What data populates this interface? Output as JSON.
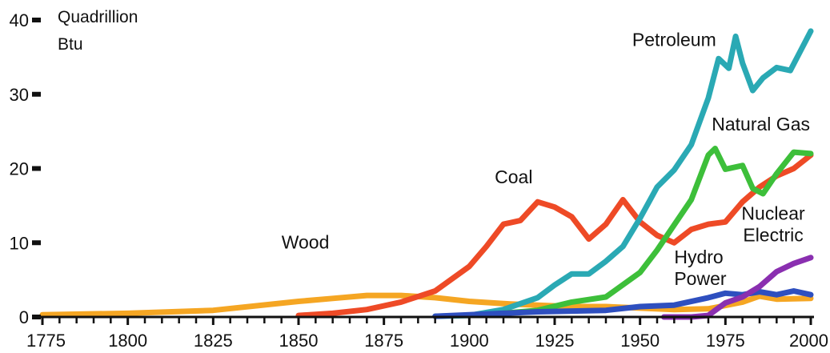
{
  "chart_data": {
    "type": "line",
    "title": "",
    "xlabel": "",
    "ylabel": "",
    "unit_label": [
      "Quadrillion",
      "Btu"
    ],
    "xlim": [
      1775,
      2000
    ],
    "ylim": [
      0,
      40
    ],
    "x_ticks": [
      1775,
      1800,
      1825,
      1850,
      1875,
      1900,
      1925,
      1950,
      1975,
      2000
    ],
    "y_ticks": [
      0,
      10,
      20,
      30,
      40
    ],
    "grid": false,
    "legend": "none",
    "series": [
      {
        "name": "Wood",
        "color": "#f5a623",
        "label_pos": {
          "x": 1852,
          "y": 9.2
        },
        "label_anchor": "middle",
        "points": [
          [
            1775,
            0.3
          ],
          [
            1800,
            0.5
          ],
          [
            1825,
            0.9
          ],
          [
            1850,
            2.1
          ],
          [
            1860,
            2.5
          ],
          [
            1870,
            2.9
          ],
          [
            1880,
            2.9
          ],
          [
            1890,
            2.6
          ],
          [
            1900,
            2.1
          ],
          [
            1910,
            1.8
          ],
          [
            1920,
            1.6
          ],
          [
            1930,
            1.4
          ],
          [
            1940,
            1.4
          ],
          [
            1950,
            1.2
          ],
          [
            1960,
            1.0
          ],
          [
            1970,
            1.1
          ],
          [
            1980,
            2.0
          ],
          [
            1985,
            2.8
          ],
          [
            1990,
            2.4
          ],
          [
            2000,
            2.5
          ]
        ]
      },
      {
        "name": "Coal",
        "color": "#ee4a26",
        "label_pos": {
          "x": 1913,
          "y": 18.0
        },
        "label_anchor": "middle",
        "points": [
          [
            1850,
            0.2
          ],
          [
            1860,
            0.5
          ],
          [
            1870,
            1.0
          ],
          [
            1880,
            2.0
          ],
          [
            1890,
            3.5
          ],
          [
            1900,
            6.8
          ],
          [
            1905,
            9.5
          ],
          [
            1910,
            12.5
          ],
          [
            1915,
            13.0
          ],
          [
            1920,
            15.5
          ],
          [
            1925,
            14.8
          ],
          [
            1930,
            13.5
          ],
          [
            1935,
            10.5
          ],
          [
            1940,
            12.5
          ],
          [
            1945,
            15.8
          ],
          [
            1950,
            12.8
          ],
          [
            1955,
            11.0
          ],
          [
            1960,
            10.0
          ],
          [
            1965,
            11.8
          ],
          [
            1970,
            12.5
          ],
          [
            1975,
            12.8
          ],
          [
            1980,
            15.5
          ],
          [
            1985,
            17.5
          ],
          [
            1990,
            19.0
          ],
          [
            1995,
            20.0
          ],
          [
            2000,
            21.8
          ]
        ]
      },
      {
        "name": "Petroleum",
        "color": "#2aa9b4",
        "label_pos": {
          "x": 1960,
          "y": 36.5
        },
        "label_anchor": "middle",
        "points": [
          [
            1890,
            0.1
          ],
          [
            1900,
            0.2
          ],
          [
            1910,
            1.0
          ],
          [
            1920,
            2.6
          ],
          [
            1925,
            4.3
          ],
          [
            1930,
            5.8
          ],
          [
            1935,
            5.8
          ],
          [
            1940,
            7.5
          ],
          [
            1945,
            9.5
          ],
          [
            1950,
            13.3
          ],
          [
            1955,
            17.5
          ],
          [
            1960,
            19.8
          ],
          [
            1965,
            23.2
          ],
          [
            1970,
            29.5
          ],
          [
            1973,
            34.8
          ],
          [
            1976,
            33.5
          ],
          [
            1978,
            37.8
          ],
          [
            1980,
            34.2
          ],
          [
            1983,
            30.5
          ],
          [
            1986,
            32.2
          ],
          [
            1990,
            33.6
          ],
          [
            1994,
            33.2
          ],
          [
            2000,
            38.5
          ]
        ]
      },
      {
        "name": "Natural Gas",
        "color": "#3dbf3a",
        "label_pos": {
          "x": 1971,
          "y": 25.1
        },
        "label_anchor": "start",
        "points": [
          [
            1900,
            0.2
          ],
          [
            1910,
            0.5
          ],
          [
            1920,
            0.9
          ],
          [
            1930,
            2.0
          ],
          [
            1940,
            2.7
          ],
          [
            1950,
            6.0
          ],
          [
            1955,
            9.0
          ],
          [
            1960,
            12.4
          ],
          [
            1965,
            15.8
          ],
          [
            1970,
            21.8
          ],
          [
            1972,
            22.7
          ],
          [
            1975,
            19.9
          ],
          [
            1980,
            20.4
          ],
          [
            1983,
            17.3
          ],
          [
            1986,
            16.6
          ],
          [
            1990,
            19.3
          ],
          [
            1995,
            22.2
          ],
          [
            2000,
            22.0
          ]
        ]
      },
      {
        "name": "Hydro Power",
        "color": "#2e4fbf",
        "label_lines": [
          "Hydro",
          "Power"
        ],
        "label_pos": {
          "x": 1960,
          "y": 7.2
        },
        "label_anchor": "start",
        "points": [
          [
            1890,
            0.1
          ],
          [
            1900,
            0.3
          ],
          [
            1910,
            0.5
          ],
          [
            1920,
            0.7
          ],
          [
            1930,
            0.8
          ],
          [
            1940,
            0.9
          ],
          [
            1950,
            1.4
          ],
          [
            1960,
            1.6
          ],
          [
            1970,
            2.6
          ],
          [
            1975,
            3.2
          ],
          [
            1980,
            3.0
          ],
          [
            1985,
            3.4
          ],
          [
            1990,
            3.0
          ],
          [
            1995,
            3.5
          ],
          [
            2000,
            3.0
          ]
        ]
      },
      {
        "name": "Nuclear Electric",
        "color": "#8a2fb0",
        "label_lines": [
          "Nuclear",
          "Electric"
        ],
        "label_pos": {
          "x": 1989,
          "y": 13.1
        },
        "label_anchor": "middle",
        "points": [
          [
            1957,
            0.0
          ],
          [
            1965,
            0.0
          ],
          [
            1970,
            0.2
          ],
          [
            1975,
            1.9
          ],
          [
            1980,
            2.7
          ],
          [
            1985,
            4.1
          ],
          [
            1990,
            6.1
          ],
          [
            1995,
            7.2
          ],
          [
            2000,
            8.0
          ]
        ]
      }
    ]
  }
}
